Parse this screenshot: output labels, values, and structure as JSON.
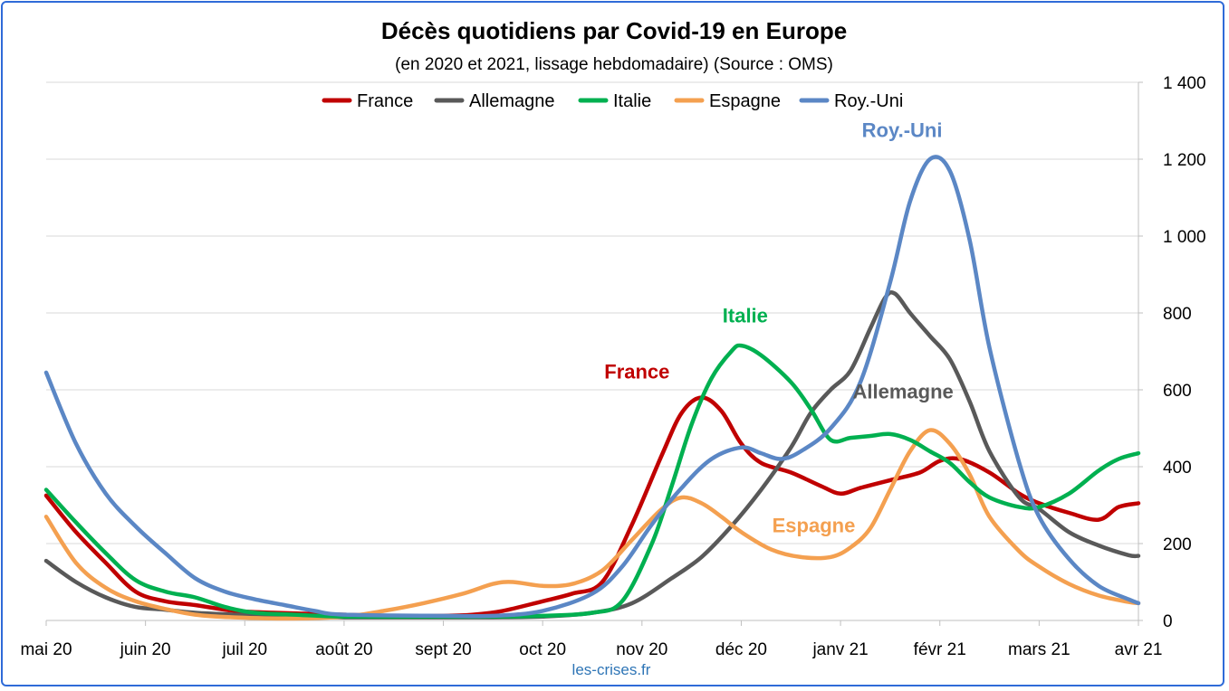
{
  "chart_data": {
    "type": "line",
    "title": "Décès quotidiens par Covid-19 en Europe",
    "subtitle": "(en 2020 et 2021, lissage hebdomadaire) (Source : OMS)",
    "source_note": "les-crises.fr",
    "xlabel": "",
    "ylabel": "",
    "x_ticks": [
      "mai 20",
      "juin 20",
      "juil 20",
      "août 20",
      "sept 20",
      "oct 20",
      "nov 20",
      "déc 20",
      "janv 21",
      "févr 21",
      "mars 21",
      "avr 21"
    ],
    "x_range": [
      0,
      11
    ],
    "ylim": [
      0,
      1400
    ],
    "y_ticks": [
      0,
      200,
      400,
      600,
      800,
      1000,
      1200,
      1400
    ],
    "y_tick_labels": [
      "0",
      "200",
      "400",
      "600",
      "800",
      "1 000",
      "1 200",
      "1 400"
    ],
    "y_axis_side": "right",
    "grid": "horizontal",
    "legend_position": "top",
    "series": [
      {
        "name": "France",
        "color": "#c00000",
        "annotation": "France",
        "annotation_at": [
          5.95,
          630
        ],
        "points": [
          [
            0,
            325
          ],
          [
            0.3,
            230
          ],
          [
            0.6,
            150
          ],
          [
            0.9,
            75
          ],
          [
            1.2,
            50
          ],
          [
            1.5,
            40
          ],
          [
            1.9,
            25
          ],
          [
            2.3,
            20
          ],
          [
            3,
            15
          ],
          [
            3.5,
            12
          ],
          [
            4,
            12
          ],
          [
            4.3,
            15
          ],
          [
            4.6,
            25
          ],
          [
            5,
            50
          ],
          [
            5.3,
            70
          ],
          [
            5.6,
            100
          ],
          [
            5.9,
            250
          ],
          [
            6.2,
            430
          ],
          [
            6.4,
            540
          ],
          [
            6.6,
            580
          ],
          [
            6.8,
            545
          ],
          [
            7,
            460
          ],
          [
            7.2,
            410
          ],
          [
            7.5,
            385
          ],
          [
            7.8,
            350
          ],
          [
            8,
            330
          ],
          [
            8.2,
            345
          ],
          [
            8.5,
            365
          ],
          [
            8.8,
            385
          ],
          [
            9,
            415
          ],
          [
            9.2,
            420
          ],
          [
            9.5,
            385
          ],
          [
            9.8,
            330
          ],
          [
            10,
            305
          ],
          [
            10.3,
            280
          ],
          [
            10.6,
            262
          ],
          [
            10.8,
            295
          ],
          [
            11,
            305
          ]
        ]
      },
      {
        "name": "Allemagne",
        "color": "#595959",
        "annotation": "Allemagne",
        "annotation_at": [
          8.63,
          578
        ],
        "points": [
          [
            0,
            155
          ],
          [
            0.3,
            100
          ],
          [
            0.6,
            60
          ],
          [
            0.9,
            35
          ],
          [
            1.2,
            28
          ],
          [
            1.5,
            20
          ],
          [
            1.9,
            15
          ],
          [
            2.5,
            10
          ],
          [
            3,
            8
          ],
          [
            4,
            8
          ],
          [
            4.5,
            8
          ],
          [
            5,
            10
          ],
          [
            5.5,
            20
          ],
          [
            5.9,
            45
          ],
          [
            6.3,
            110
          ],
          [
            6.6,
            165
          ],
          [
            6.9,
            245
          ],
          [
            7.2,
            340
          ],
          [
            7.5,
            450
          ],
          [
            7.7,
            540
          ],
          [
            7.9,
            600
          ],
          [
            8.1,
            650
          ],
          [
            8.3,
            760
          ],
          [
            8.45,
            840
          ],
          [
            8.55,
            850
          ],
          [
            8.7,
            800
          ],
          [
            8.9,
            740
          ],
          [
            9.1,
            680
          ],
          [
            9.3,
            570
          ],
          [
            9.5,
            440
          ],
          [
            9.8,
            320
          ],
          [
            10,
            290
          ],
          [
            10.3,
            230
          ],
          [
            10.6,
            195
          ],
          [
            10.9,
            170
          ],
          [
            11,
            168
          ]
        ]
      },
      {
        "name": "Italie",
        "color": "#00b050",
        "annotation": "Italie",
        "annotation_at": [
          7.04,
          775
        ],
        "points": [
          [
            0,
            340
          ],
          [
            0.3,
            255
          ],
          [
            0.6,
            175
          ],
          [
            0.9,
            105
          ],
          [
            1.2,
            75
          ],
          [
            1.5,
            60
          ],
          [
            1.8,
            35
          ],
          [
            2.1,
            20
          ],
          [
            2.5,
            15
          ],
          [
            3,
            10
          ],
          [
            4,
            10
          ],
          [
            4.5,
            10
          ],
          [
            5,
            12
          ],
          [
            5.5,
            20
          ],
          [
            5.8,
            50
          ],
          [
            6.1,
            200
          ],
          [
            6.3,
            350
          ],
          [
            6.5,
            510
          ],
          [
            6.7,
            630
          ],
          [
            6.9,
            700
          ],
          [
            7,
            715
          ],
          [
            7.2,
            690
          ],
          [
            7.5,
            620
          ],
          [
            7.7,
            550
          ],
          [
            7.9,
            470
          ],
          [
            8.1,
            475
          ],
          [
            8.3,
            480
          ],
          [
            8.5,
            485
          ],
          [
            8.7,
            470
          ],
          [
            8.9,
            440
          ],
          [
            9.1,
            410
          ],
          [
            9.3,
            360
          ],
          [
            9.5,
            320
          ],
          [
            9.8,
            295
          ],
          [
            10,
            295
          ],
          [
            10.3,
            330
          ],
          [
            10.6,
            390
          ],
          [
            10.8,
            420
          ],
          [
            11,
            435
          ]
        ]
      },
      {
        "name": "Espagne",
        "color": "#f4a050",
        "annotation": "Espagne",
        "annotation_at": [
          7.73,
          230
        ],
        "points": [
          [
            0,
            270
          ],
          [
            0.3,
            150
          ],
          [
            0.6,
            85
          ],
          [
            0.9,
            50
          ],
          [
            1.2,
            30
          ],
          [
            1.5,
            15
          ],
          [
            1.9,
            8
          ],
          [
            2.5,
            5
          ],
          [
            3,
            10
          ],
          [
            3.4,
            25
          ],
          [
            3.8,
            45
          ],
          [
            4.2,
            70
          ],
          [
            4.5,
            95
          ],
          [
            4.7,
            100
          ],
          [
            5,
            90
          ],
          [
            5.3,
            95
          ],
          [
            5.6,
            130
          ],
          [
            5.9,
            210
          ],
          [
            6.2,
            290
          ],
          [
            6.4,
            320
          ],
          [
            6.6,
            305
          ],
          [
            6.8,
            270
          ],
          [
            7,
            230
          ],
          [
            7.3,
            185
          ],
          [
            7.6,
            165
          ],
          [
            7.9,
            165
          ],
          [
            8.1,
            190
          ],
          [
            8.3,
            240
          ],
          [
            8.5,
            340
          ],
          [
            8.7,
            440
          ],
          [
            8.9,
            495
          ],
          [
            9.1,
            460
          ],
          [
            9.3,
            380
          ],
          [
            9.5,
            270
          ],
          [
            9.8,
            180
          ],
          [
            10,
            140
          ],
          [
            10.3,
            95
          ],
          [
            10.6,
            65
          ],
          [
            10.9,
            48
          ],
          [
            11,
            45
          ]
        ]
      },
      {
        "name": "Roy.-Uni",
        "color": "#5b87c5",
        "annotation": "Roy.-Uni",
        "annotation_at": [
          8.62,
          1258
        ],
        "points": [
          [
            0,
            645
          ],
          [
            0.3,
            460
          ],
          [
            0.6,
            330
          ],
          [
            0.9,
            245
          ],
          [
            1.2,
            175
          ],
          [
            1.5,
            110
          ],
          [
            1.8,
            75
          ],
          [
            2.1,
            55
          ],
          [
            2.4,
            40
          ],
          [
            2.7,
            25
          ],
          [
            3,
            15
          ],
          [
            4,
            12
          ],
          [
            4.5,
            12
          ],
          [
            5,
            25
          ],
          [
            5.5,
            70
          ],
          [
            5.8,
            140
          ],
          [
            6.1,
            250
          ],
          [
            6.4,
            345
          ],
          [
            6.7,
            420
          ],
          [
            7,
            450
          ],
          [
            7.2,
            435
          ],
          [
            7.4,
            420
          ],
          [
            7.6,
            440
          ],
          [
            7.9,
            500
          ],
          [
            8.2,
            620
          ],
          [
            8.5,
            880
          ],
          [
            8.7,
            1090
          ],
          [
            8.9,
            1200
          ],
          [
            9.1,
            1170
          ],
          [
            9.3,
            990
          ],
          [
            9.5,
            710
          ],
          [
            9.8,
            410
          ],
          [
            10,
            270
          ],
          [
            10.3,
            160
          ],
          [
            10.6,
            90
          ],
          [
            10.9,
            55
          ],
          [
            11,
            45
          ]
        ]
      }
    ]
  }
}
